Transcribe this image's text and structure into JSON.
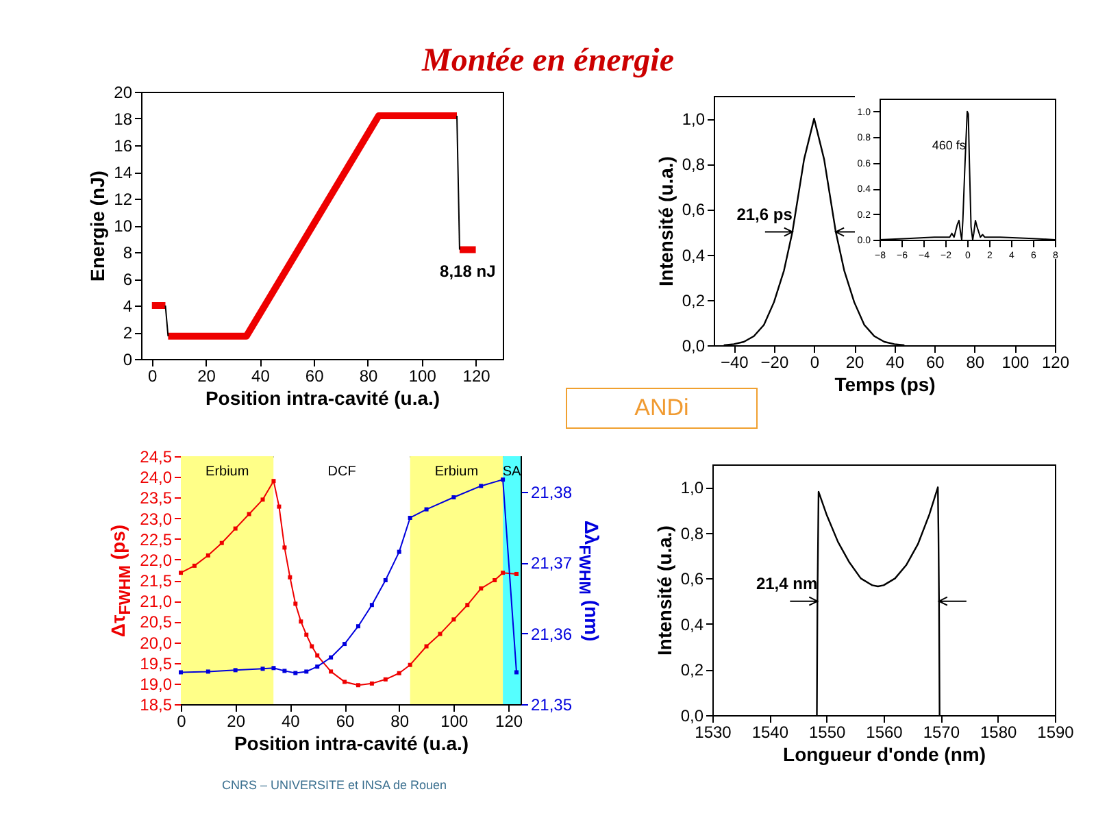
{
  "chart_data": [
    {
      "type": "line",
      "xlabel": "Position intra-cavité (u.a.)",
      "ylabel": "Energie (nJ)",
      "xlim": [
        -4,
        130
      ],
      "xticks": [
        0,
        20,
        40,
        60,
        80,
        100,
        120
      ],
      "ylim": [
        0,
        20
      ],
      "yticks": [
        0,
        2,
        4,
        6,
        8,
        10,
        12,
        14,
        16,
        18,
        20
      ],
      "series": [
        {
          "color": "#ee0000",
          "x": [
            0,
            5,
            null,
            6,
            35,
            84,
            113,
            null,
            114,
            120
          ],
          "values": [
            4,
            4,
            null,
            1.7,
            1.7,
            18.2,
            18.2,
            null,
            8.18,
            8.18
          ]
        },
        {
          "color": "#000000",
          "x": [
            5,
            6,
            null,
            113,
            114
          ],
          "values": [
            4,
            1.7,
            null,
            18.2,
            8.18
          ]
        }
      ],
      "annotations": [
        {
          "text": "8,18 nJ",
          "x": 117,
          "y": 8.18
        }
      ]
    },
    {
      "type": "line",
      "xlabel": "Temps (ps)",
      "ylabel": "Intensité (u.a.)",
      "xlim": [
        -50,
        120
      ],
      "xticks": [
        -40,
        -20,
        0,
        20,
        40,
        60,
        80,
        100,
        120
      ],
      "ylim": [
        0,
        1.1
      ],
      "yticks": [
        {
          "value": 0,
          "label": "0,0"
        },
        {
          "value": 0.2,
          "label": "0,2"
        },
        {
          "value": 0.4,
          "label": "0,4"
        },
        {
          "value": 0.6,
          "label": "0,6"
        },
        {
          "value": 0.8,
          "label": "0,8"
        },
        {
          "value": 1,
          "label": "1,0"
        }
      ],
      "series": [
        {
          "color": "#000000",
          "x": [
            -45,
            -40,
            -35,
            -30,
            -25,
            -20,
            -15,
            -10.8,
            -5,
            0,
            5,
            10.8,
            15,
            20,
            25,
            30,
            35,
            40,
            45
          ],
          "values": [
            0,
            0.005,
            0.015,
            0.04,
            0.09,
            0.19,
            0.33,
            0.5,
            0.82,
            1,
            0.82,
            0.5,
            0.33,
            0.19,
            0.09,
            0.04,
            0.015,
            0.005,
            0
          ]
        }
      ],
      "annotations": [
        {
          "text": "21,6 ps",
          "x": -10.8,
          "y": 0.5
        }
      ]
    },
    {
      "type": "line",
      "xlim": [
        -8,
        8
      ],
      "xticks": [
        -8,
        -6,
        -4,
        -2,
        0,
        2,
        4,
        6,
        8
      ],
      "ylim": [
        0,
        1.1
      ],
      "yticks": [
        {
          "value": 0,
          "label": "0.0"
        },
        {
          "value": 0.2,
          "label": "0.2"
        },
        {
          "value": 0.4,
          "label": "0.4"
        },
        {
          "value": 0.6,
          "label": "0.6"
        },
        {
          "value": 0.8,
          "label": "0.8"
        },
        {
          "value": 1,
          "label": "1.0"
        }
      ],
      "series": [
        {
          "color": "#000000",
          "x": [
            -8,
            -5.5,
            -3,
            -1.6,
            -1.4,
            -1.2,
            -0.9,
            -0.75,
            -0.6,
            -0.5,
            -0.4,
            -0.2,
            0,
            0.1,
            0.2,
            0.35,
            0.5,
            0.6,
            0.75,
            0.9,
            1.2,
            1.4,
            1.6,
            3,
            6,
            8
          ],
          "values": [
            0,
            0.01,
            0.02,
            0.02,
            0.05,
            0.02,
            0.12,
            0.15,
            0.05,
            0,
            0.15,
            0.6,
            1,
            0.98,
            0.6,
            0.1,
            0,
            0.05,
            0.15,
            0.1,
            0.02,
            0.04,
            0.02,
            0.02,
            0.01,
            0
          ]
        }
      ],
      "annotations": [
        "460 fs"
      ]
    },
    {
      "type": "line",
      "xlabel": "Position intra-cavité (u.a.)",
      "ylabel": "Δτ$_{FWHM}$ (ps)",
      "y2label": "Δλ$_{FWHM}$ (nm)",
      "marker": "square",
      "xlim": [
        0,
        124.5
      ],
      "xticks": [
        0,
        20,
        40,
        60,
        80,
        100,
        120
      ],
      "ylim": [
        18.5,
        24.5
      ],
      "yticks": [
        {
          "value": 18.5,
          "label": "18,5"
        },
        {
          "value": 19,
          "label": "19,0"
        },
        {
          "value": 19.5,
          "label": "19,5"
        },
        {
          "value": 20,
          "label": "20,0"
        },
        {
          "value": 20.5,
          "label": "20,5"
        },
        {
          "value": 21,
          "label": "21,0"
        },
        {
          "value": 21.5,
          "label": "21,5"
        },
        {
          "value": 22,
          "label": "22,0"
        },
        {
          "value": 22.5,
          "label": "22,5"
        },
        {
          "value": 23,
          "label": "23,0"
        },
        {
          "value": 23.5,
          "label": "23,5"
        },
        {
          "value": 24,
          "label": "24,0"
        },
        {
          "value": 24.5,
          "label": "24,5"
        }
      ],
      "y2lim": [
        21.35,
        21.385
      ],
      "y2ticks": [
        {
          "value": 21.35,
          "label": "21,35"
        },
        {
          "value": 21.36,
          "label": "21,36"
        },
        {
          "value": 21.37,
          "label": "21,37"
        },
        {
          "value": 21.38,
          "label": "21,38"
        }
      ],
      "bands": [
        {
          "axis": "x",
          "from": 0,
          "to": 34,
          "label": "Erbium",
          "color": "#ffff88"
        },
        {
          "axis": "x",
          "from": 34,
          "to": 84,
          "label": "DCF",
          "color": "#ffffff"
        },
        {
          "axis": "x",
          "from": 84,
          "to": 118,
          "label": "Erbium",
          "color": "#ffff88"
        },
        {
          "axis": "x",
          "from": 118,
          "to": 124.5,
          "label": "SA",
          "color": "#55ffff"
        }
      ],
      "series": [
        {
          "color": "#ee0000",
          "x": [
            0,
            5,
            10,
            15,
            20,
            25,
            30,
            34,
            36,
            38,
            40,
            42,
            44,
            46,
            48,
            50,
            55,
            60,
            65,
            70,
            75,
            80,
            84,
            90,
            95,
            100,
            105,
            110,
            115,
            118,
            123
          ],
          "values": [
            21.68,
            21.85,
            22.1,
            22.4,
            22.75,
            23.1,
            23.45,
            23.9,
            23.28,
            22.29,
            21.57,
            20.93,
            20.5,
            20.18,
            19.9,
            19.68,
            19.29,
            19.04,
            18.96,
            19,
            19.1,
            19.25,
            19.45,
            19.9,
            20.2,
            20.55,
            20.9,
            21.3,
            21.5,
            21.68,
            21.65
          ]
        },
        {
          "color": "#0000dd",
          "axis": "y2",
          "x": [
            0,
            10,
            20,
            30,
            34,
            38,
            42,
            46,
            50,
            55,
            60,
            65,
            70,
            75,
            80,
            84,
            90,
            100,
            110,
            118,
            123
          ],
          "values": [
            21.3545,
            21.3546,
            21.3548,
            21.355,
            21.3551,
            21.3547,
            21.3544,
            21.3546,
            21.3553,
            21.3566,
            21.3585,
            21.361,
            21.364,
            21.3675,
            21.3715,
            21.3763,
            21.3775,
            21.3792,
            21.3808,
            21.3817,
            21.3545
          ]
        }
      ]
    },
    {
      "type": "line",
      "xlabel": "Longueur d'onde (nm)",
      "ylabel": "Intensité (u.a.)",
      "xlim": [
        1530,
        1590
      ],
      "xticks": [
        1530,
        1540,
        1550,
        1560,
        1570,
        1580,
        1590
      ],
      "ylim": [
        0,
        1.1
      ],
      "yticks": [
        {
          "value": 0,
          "label": "0,0"
        },
        {
          "value": 0.2,
          "label": "0,2"
        },
        {
          "value": 0.4,
          "label": "0,4"
        },
        {
          "value": 0.6,
          "label": "0,6"
        },
        {
          "value": 0.8,
          "label": "0,8"
        },
        {
          "value": 1,
          "label": "1,0"
        }
      ],
      "series": [
        {
          "color": "#000000",
          "x": [
            1548.3,
            1548.4,
            1548.6,
            1550,
            1552,
            1554,
            1556,
            1558,
            1559,
            1560,
            1562,
            1564,
            1566,
            1568,
            1569.5,
            1569.6,
            1569.7,
            1569.8
          ],
          "values": [
            0,
            0.5,
            0.98,
            0.88,
            0.76,
            0.67,
            0.6,
            0.57,
            0.565,
            0.57,
            0.6,
            0.66,
            0.75,
            0.88,
            1,
            0.8,
            0.5,
            0
          ]
        }
      ],
      "annotations": [
        {
          "text": "21,4 nm",
          "x": 1548.4,
          "y": 0.5
        }
      ]
    },
    {
      "type": "other",
      "title": "Montée en énergie",
      "annotations": [
        "ANDi",
        "CNRS – UNIVERSITE et INSA de Rouen"
      ]
    }
  ]
}
